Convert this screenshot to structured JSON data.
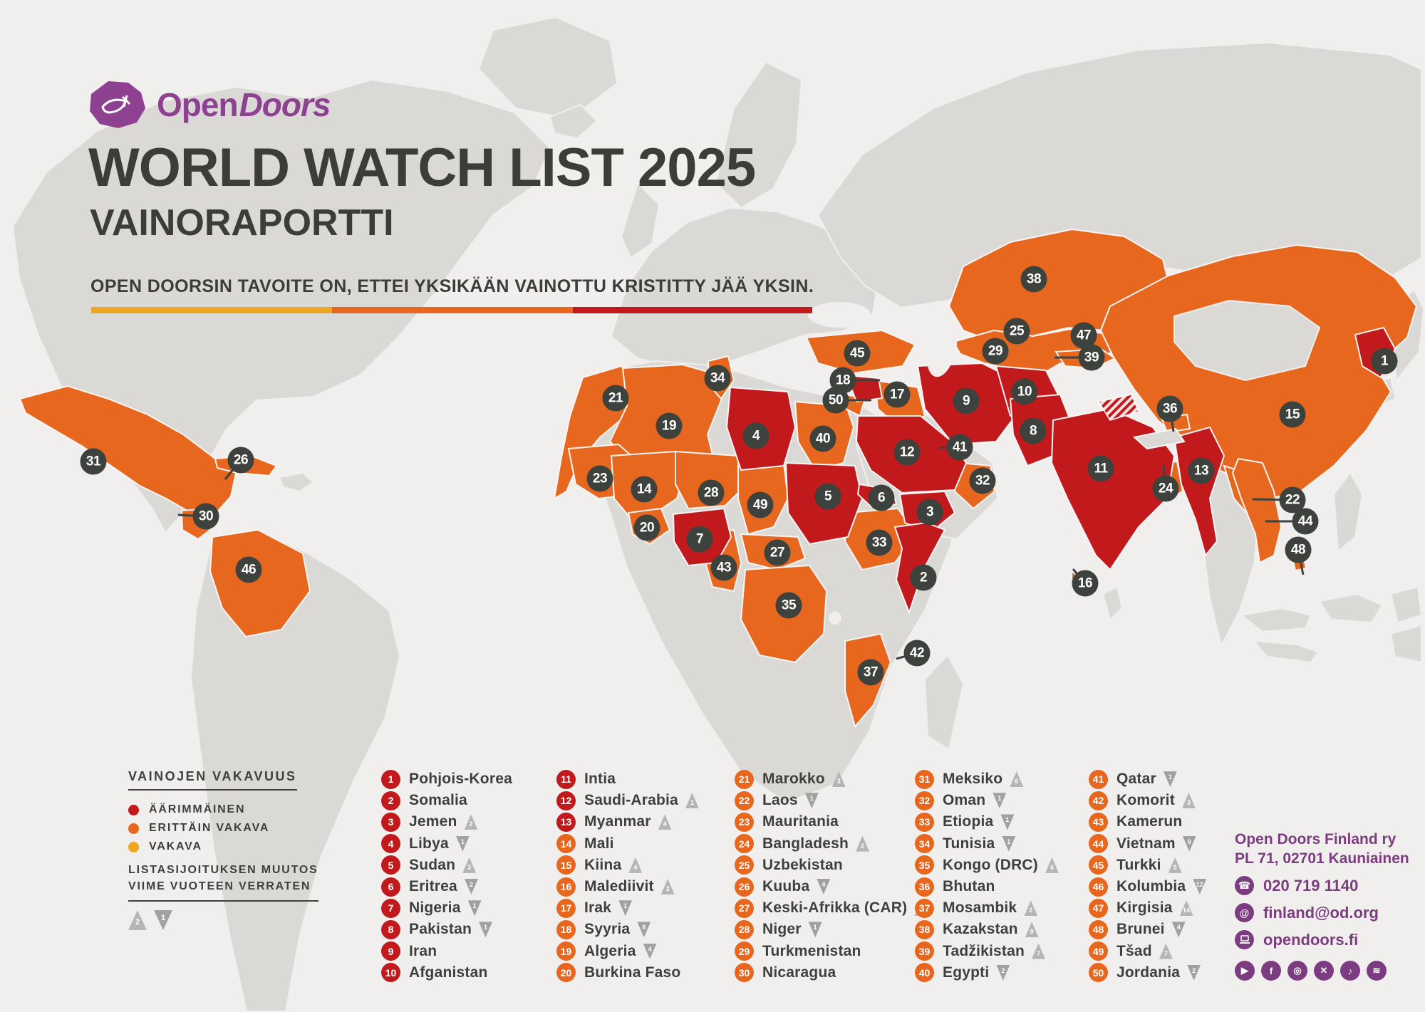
{
  "header": {
    "logo_open": "Open",
    "logo_doors": "Doors",
    "title_main": "WORLD WATCH LIST",
    "title_year": "2025",
    "subtitle": "VAINORAPORTTI",
    "tagline": "OPEN DOORSIN TAVOITE ON, ETTEI YKSIKÄÄN VAINOTTU KRISTITTY JÄÄ YKSIN."
  },
  "legend": {
    "severity_title": "VAINOJEN VAKAVUUS",
    "levels": [
      {
        "label": "ÄÄRIMMÄINEN",
        "color": "#c2191d"
      },
      {
        "label": "ERITTÄIN VAKAVA",
        "color": "#e8671e"
      },
      {
        "label": "VAKAVA",
        "color": "#eba71f"
      }
    ],
    "change_title_line1": "LISTASIJOITUKSEN MUUTOS",
    "change_title_line2": "VIIME VUOTEEN VERRATEN",
    "change_examples": [
      {
        "dir": "up",
        "value": "2"
      },
      {
        "dir": "down",
        "value": "1"
      }
    ]
  },
  "countries": [
    {
      "rank": 1,
      "name": "Pohjois-Korea",
      "severity": "extreme",
      "change": null,
      "marker": [
        1943,
        507
      ]
    },
    {
      "rank": 2,
      "name": "Somalia",
      "severity": "extreme",
      "change": null,
      "marker": [
        1296,
        811
      ]
    },
    {
      "rank": 3,
      "name": "Jemen",
      "severity": "extreme",
      "change": {
        "dir": "up",
        "value": "2"
      },
      "marker": [
        1305,
        719
      ]
    },
    {
      "rank": 4,
      "name": "Libya",
      "severity": "extreme",
      "change": {
        "dir": "down",
        "value": "1"
      },
      "marker": [
        1061,
        612
      ]
    },
    {
      "rank": 5,
      "name": "Sudan",
      "severity": "extreme",
      "change": {
        "dir": "up",
        "value": "3"
      },
      "marker": [
        1162,
        697
      ]
    },
    {
      "rank": 6,
      "name": "Eritrea",
      "severity": "extreme",
      "change": {
        "dir": "down",
        "value": "2"
      },
      "marker": [
        1237,
        699
      ]
    },
    {
      "rank": 7,
      "name": "Nigeria",
      "severity": "extreme",
      "change": {
        "dir": "down",
        "value": "1"
      },
      "marker": [
        982,
        757
      ]
    },
    {
      "rank": 8,
      "name": "Pakistan",
      "severity": "extreme",
      "change": {
        "dir": "down",
        "value": "1"
      },
      "marker": [
        1450,
        605
      ]
    },
    {
      "rank": 9,
      "name": "Iran",
      "severity": "extreme",
      "change": null,
      "marker": [
        1356,
        563
      ]
    },
    {
      "rank": 10,
      "name": "Afganistan",
      "severity": "extreme",
      "change": null,
      "marker": [
        1438,
        550
      ]
    },
    {
      "rank": 11,
      "name": "Intia",
      "severity": "extreme",
      "change": null,
      "marker": [
        1545,
        658
      ]
    },
    {
      "rank": 12,
      "name": "Saudi-Arabia",
      "severity": "extreme",
      "change": {
        "dir": "up",
        "value": "1"
      },
      "marker": [
        1273,
        635
      ]
    },
    {
      "rank": 13,
      "name": "Myanmar",
      "severity": "extreme",
      "change": {
        "dir": "up",
        "value": "4"
      },
      "marker": [
        1686,
        661
      ]
    },
    {
      "rank": 14,
      "name": "Mali",
      "severity": "very_severe",
      "change": null,
      "marker": [
        904,
        687
      ]
    },
    {
      "rank": 15,
      "name": "Kiina",
      "severity": "very_severe",
      "change": {
        "dir": "up",
        "value": "4"
      },
      "marker": [
        1814,
        582
      ]
    },
    {
      "rank": 16,
      "name": "Malediivit",
      "severity": "very_severe",
      "change": {
        "dir": "up",
        "value": "2"
      },
      "marker": [
        1523,
        819
      ],
      "line": [
        1506,
        799
      ]
    },
    {
      "rank": 17,
      "name": "Irak",
      "severity": "very_severe",
      "change": {
        "dir": "down",
        "value": "1"
      },
      "marker": [
        1259,
        554
      ]
    },
    {
      "rank": 18,
      "name": "Syyria",
      "severity": "very_severe",
      "change": {
        "dir": "down",
        "value": "6"
      },
      "marker": [
        1183,
        534
      ],
      "line": [
        1235,
        534
      ]
    },
    {
      "rank": 19,
      "name": "Algeria",
      "severity": "very_severe",
      "change": {
        "dir": "down",
        "value": "4"
      },
      "marker": [
        939,
        598
      ]
    },
    {
      "rank": 20,
      "name": "Burkina Faso",
      "severity": "very_severe",
      "change": null,
      "marker": [
        908,
        741
      ]
    },
    {
      "rank": 21,
      "name": "Marokko",
      "severity": "very_severe",
      "change": {
        "dir": "up",
        "value": "3"
      },
      "marker": [
        864,
        559
      ]
    },
    {
      "rank": 22,
      "name": "Laos",
      "severity": "very_severe",
      "change": {
        "dir": "down",
        "value": "1"
      },
      "marker": [
        1814,
        702
      ],
      "line": [
        1758,
        701
      ]
    },
    {
      "rank": 23,
      "name": "Mauritania",
      "severity": "very_severe",
      "change": null,
      "marker": [
        842,
        672
      ]
    },
    {
      "rank": 24,
      "name": "Bangladesh",
      "severity": "very_severe",
      "change": {
        "dir": "up",
        "value": "2"
      },
      "marker": [
        1636,
        686
      ],
      "line": [
        1633,
        653
      ]
    },
    {
      "rank": 25,
      "name": "Uzbekistan",
      "severity": "very_severe",
      "change": null,
      "marker": [
        1427,
        465
      ]
    },
    {
      "rank": 26,
      "name": "Kuuba",
      "severity": "very_severe",
      "change": {
        "dir": "down",
        "value": "4"
      },
      "marker": [
        338,
        646
      ],
      "line": [
        316,
        673
      ]
    },
    {
      "rank": 27,
      "name": "Keski-Afrikka (CAR)",
      "severity": "very_severe",
      "change": {
        "dir": "up",
        "value": "1"
      },
      "marker": [
        1091,
        776
      ]
    },
    {
      "rank": 28,
      "name": "Niger",
      "severity": "very_severe",
      "change": {
        "dir": "down",
        "value": "1"
      },
      "marker": [
        998,
        692
      ]
    },
    {
      "rank": 29,
      "name": "Turkmenistan",
      "severity": "very_severe",
      "change": null,
      "marker": [
        1397,
        493
      ]
    },
    {
      "rank": 30,
      "name": "Nicaragua",
      "severity": "very_severe",
      "change": null,
      "marker": [
        289,
        725
      ],
      "line": [
        250,
        723
      ]
    },
    {
      "rank": 31,
      "name": "Meksiko",
      "severity": "very_severe",
      "change": {
        "dir": "up",
        "value": "6"
      },
      "marker": [
        131,
        648
      ]
    },
    {
      "rank": 32,
      "name": "Oman",
      "severity": "very_severe",
      "change": {
        "dir": "down",
        "value": "1"
      },
      "marker": [
        1379,
        675
      ]
    },
    {
      "rank": 33,
      "name": "Etiopia",
      "severity": "very_severe",
      "change": {
        "dir": "down",
        "value": "1"
      },
      "marker": [
        1234,
        762
      ]
    },
    {
      "rank": 34,
      "name": "Tunisia",
      "severity": "very_severe",
      "change": {
        "dir": "down",
        "value": "1"
      },
      "marker": [
        1007,
        531
      ]
    },
    {
      "rank": 35,
      "name": "Kongo (DRC)",
      "severity": "very_severe",
      "change": {
        "dir": "up",
        "value": "6"
      },
      "marker": [
        1107,
        850
      ]
    },
    {
      "rank": 36,
      "name": "Bhutan",
      "severity": "very_severe",
      "change": null,
      "marker": [
        1642,
        574
      ],
      "line": [
        1647,
        606
      ]
    },
    {
      "rank": 37,
      "name": "Mosambik",
      "severity": "very_severe",
      "change": {
        "dir": "up",
        "value": "2"
      },
      "marker": [
        1222,
        944
      ]
    },
    {
      "rank": 38,
      "name": "Kazakstan",
      "severity": "very_severe",
      "change": {
        "dir": "up",
        "value": "9"
      },
      "marker": [
        1451,
        392
      ]
    },
    {
      "rank": 39,
      "name": "Tadžikistan",
      "severity": "very_severe",
      "change": {
        "dir": "up",
        "value": "7"
      },
      "marker": [
        1532,
        502
      ],
      "line": [
        1480,
        502
      ]
    },
    {
      "rank": 40,
      "name": "Egypti",
      "severity": "very_severe",
      "change": {
        "dir": "down",
        "value": "2"
      },
      "marker": [
        1155,
        616
      ]
    },
    {
      "rank": 41,
      "name": "Qatar",
      "severity": "very_severe",
      "change": {
        "dir": "down",
        "value": "1"
      },
      "marker": [
        1347,
        628
      ],
      "line": [
        1318,
        629
      ]
    },
    {
      "rank": 42,
      "name": "Komorit",
      "severity": "very_severe",
      "change": {
        "dir": "up",
        "value": "3"
      },
      "marker": [
        1287,
        917
      ],
      "line": [
        1258,
        925
      ]
    },
    {
      "rank": 43,
      "name": "Kamerun",
      "severity": "very_severe",
      "change": null,
      "marker": [
        1016,
        797
      ]
    },
    {
      "rank": 44,
      "name": "Vietnam",
      "severity": "very_severe",
      "change": {
        "dir": "down",
        "value": "9"
      },
      "marker": [
        1832,
        732
      ],
      "line": [
        1776,
        732
      ]
    },
    {
      "rank": 45,
      "name": "Turkki",
      "severity": "very_severe",
      "change": {
        "dir": "up",
        "value": "5"
      },
      "marker": [
        1203,
        496
      ]
    },
    {
      "rank": 46,
      "name": "Kolumbia",
      "severity": "very_severe",
      "change": {
        "dir": "down",
        "value": "12"
      },
      "marker": [
        349,
        800
      ]
    },
    {
      "rank": 47,
      "name": "Kirgisia",
      "severity": "very_severe",
      "change": {
        "dir": "up",
        "value": "14"
      },
      "marker": [
        1521,
        471
      ]
    },
    {
      "rank": 48,
      "name": "Brunei",
      "severity": "very_severe",
      "change": {
        "dir": "down",
        "value": "4"
      },
      "marker": [
        1822,
        772
      ],
      "line": [
        1829,
        807
      ]
    },
    {
      "rank": 49,
      "name": "Tšad",
      "severity": "very_severe",
      "change": {
        "dir": "up",
        "value": "7"
      },
      "marker": [
        1067,
        709
      ]
    },
    {
      "rank": 50,
      "name": "Jordania",
      "severity": "very_severe",
      "change": {
        "dir": "down",
        "value": "2"
      },
      "marker": [
        1173,
        562
      ],
      "line": [
        1223,
        562
      ]
    }
  ],
  "contact": {
    "org_name": "Open Doors Finland ry",
    "address": "PL 71, 02701  Kauniainen",
    "phone": "020 719 1140",
    "email": "finland@od.org",
    "website": "opendoors.fi",
    "social": [
      "youtube",
      "facebook",
      "instagram",
      "x",
      "tiktok",
      "spotify"
    ]
  },
  "colors": {
    "extreme": "#c2191d",
    "very_severe": "#e8671e",
    "serious": "#eba71f",
    "marker": "#3e423c",
    "brand_purple": "#8d4190",
    "contact_purple": "#7c3c80",
    "map_gray": "#dbd9d6",
    "background": "#f0efed"
  }
}
